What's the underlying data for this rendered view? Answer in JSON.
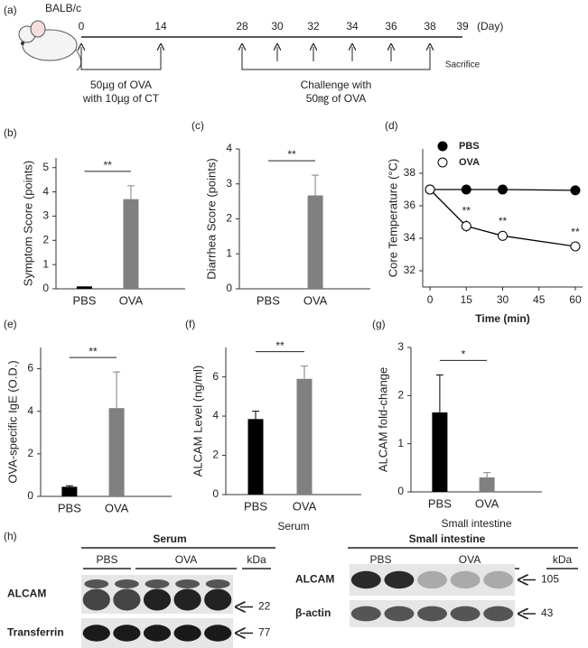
{
  "timeline": {
    "panel": "(a)",
    "strain": "BALB/c",
    "days": [
      0,
      14,
      28,
      30,
      32,
      34,
      36,
      38,
      39
    ],
    "unit": "(Day)",
    "sensitization": [
      "50µg of OVA",
      "with 10µg of CT"
    ],
    "challenge": [
      "Challenge with",
      "50㎎ of OVA"
    ],
    "endpoint": "Sacrifice"
  },
  "chart_data": [
    {
      "type": "bar",
      "panel": "(b)",
      "ylabel": "Symptom Score (points)",
      "categories": [
        "PBS",
        "OVA"
      ],
      "values": [
        0.1,
        3.7
      ],
      "errors": [
        0,
        0.55
      ],
      "colors": [
        "#000000",
        "#808080"
      ],
      "ylim": [
        0,
        5.4
      ],
      "yticks": [
        0,
        1,
        2,
        3,
        4,
        5
      ],
      "annotation": "**"
    },
    {
      "type": "bar",
      "panel": "(c)",
      "ylabel": "Diarrhea Score (points)",
      "categories": [
        "PBS",
        "OVA"
      ],
      "values": [
        0,
        2.67
      ],
      "errors": [
        0,
        0.58
      ],
      "colors": [
        "#000000",
        "#808080"
      ],
      "ylim": [
        0,
        4
      ],
      "yticks": [
        0,
        1,
        2,
        3,
        4
      ],
      "annotation": "**"
    },
    {
      "type": "line",
      "panel": "(d)",
      "ylabel": "Core Temperature (°C)",
      "xlabel": "Time (min)",
      "x": [
        0,
        15,
        30,
        60
      ],
      "series": [
        {
          "name": "PBS",
          "color": "#000000",
          "fill": "#000000",
          "values": [
            37.0,
            37.0,
            37.0,
            36.95
          ],
          "errors": [
            0.05,
            0.05,
            0.05,
            0.05
          ]
        },
        {
          "name": "OVA",
          "color": "#000000",
          "fill": "#ffffff",
          "values": [
            37.0,
            34.75,
            34.15,
            33.5
          ],
          "errors": [
            0.1,
            0.35,
            0.3,
            0.3
          ]
        }
      ],
      "annotations": [
        {
          "x": 15,
          "label": "**"
        },
        {
          "x": 30,
          "label": "**"
        },
        {
          "x": 60,
          "label": "**"
        }
      ],
      "xlim": [
        -3,
        63
      ],
      "xticks": [
        0,
        15,
        30,
        45,
        60
      ],
      "ylim": [
        31,
        39.5
      ],
      "yticks": [
        32,
        34,
        36,
        38
      ],
      "legend": "top-left"
    },
    {
      "type": "bar",
      "panel": "(e)",
      "ylabel": "OVA-specific IgE (O.D.)",
      "categories": [
        "PBS",
        "OVA"
      ],
      "values": [
        0.45,
        4.15
      ],
      "errors": [
        0.05,
        1.7
      ],
      "colors": [
        "#000000",
        "#808080"
      ],
      "ylim": [
        0,
        7
      ],
      "yticks": [
        0,
        2,
        4,
        6
      ],
      "annotation": "**"
    },
    {
      "type": "bar",
      "panel": "(f)",
      "ylabel": "ALCAM Level (ng/ml)",
      "xlabel": "Serum",
      "categories": [
        "PBS",
        "OVA"
      ],
      "values": [
        3.85,
        5.9
      ],
      "errors": [
        0.4,
        0.65
      ],
      "colors": [
        "#000000",
        "#808080"
      ],
      "ylim": [
        0,
        7.5
      ],
      "yticks": [
        0,
        2,
        4,
        6
      ],
      "annotation": "**"
    },
    {
      "type": "bar",
      "panel": "(g)",
      "ylabel": "ALCAM fold-change",
      "xlabel": "Small intestine",
      "categories": [
        "PBS",
        "OVA"
      ],
      "values": [
        1.65,
        0.3
      ],
      "errors": [
        0.78,
        0.1
      ],
      "colors": [
        "#000000",
        "#808080"
      ],
      "ylim": [
        0,
        3
      ],
      "yticks": [
        0,
        1,
        2,
        3
      ],
      "annotation": "*"
    }
  ],
  "blot": {
    "panel": "(h)",
    "left": {
      "title": "Serum",
      "groups": [
        "PBS",
        "OVA"
      ],
      "unit": "kDa",
      "rows": [
        {
          "label": "ALCAM",
          "size": 22
        },
        {
          "label": "Transferrin",
          "size": 77
        }
      ]
    },
    "right": {
      "title": "Small intestine",
      "groups": [
        "PBS",
        "OVA"
      ],
      "unit": "kDa",
      "rows": [
        {
          "label": "ALCAM",
          "size": 105
        },
        {
          "label": "β-actin",
          "size": 43
        }
      ]
    }
  }
}
